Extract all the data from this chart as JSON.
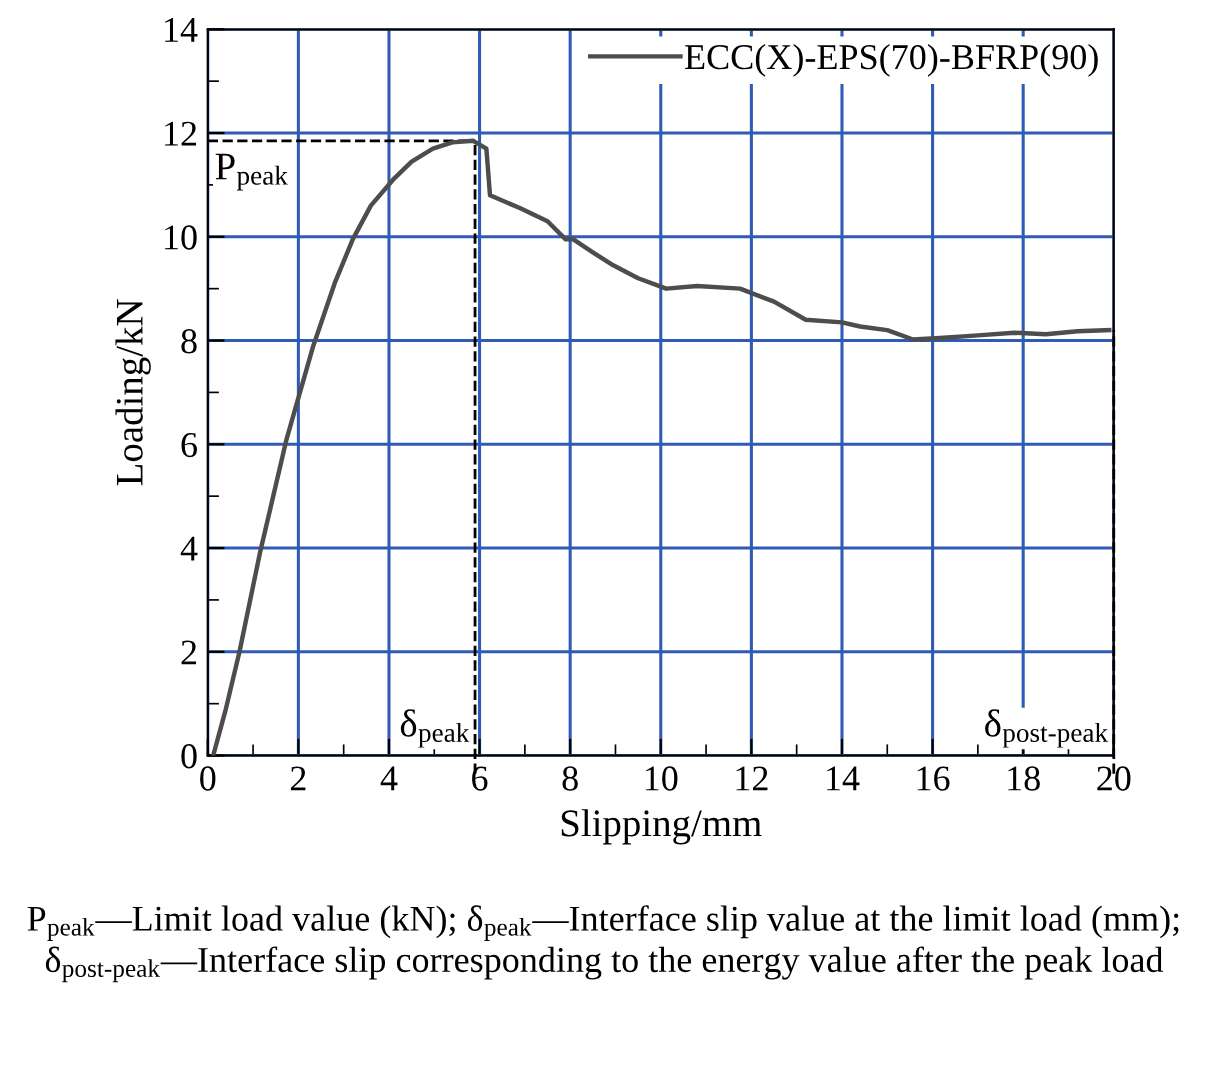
{
  "chart_data": {
    "type": "line",
    "xlabel": "Slipping/mm",
    "ylabel": "Loading/kN",
    "series": [
      {
        "name": "ECC(X)-EPS(70)-BFRP(90)",
        "color": "#4d4d4d",
        "x": [
          0.12,
          0.4,
          0.7,
          1.15,
          1.74,
          2.33,
          2.8,
          3.2,
          3.6,
          4.09,
          4.5,
          4.97,
          5.4,
          5.86,
          6.15,
          6.23,
          6.9,
          7.5,
          7.9,
          8.07,
          8.5,
          8.95,
          9.5,
          10.12,
          10.8,
          11.75,
          12.5,
          13.2,
          14.0,
          14.4,
          15.0,
          15.57,
          16.16,
          17.0,
          17.8,
          18.5,
          19.2,
          19.9
        ],
        "values": [
          0,
          0.9,
          2,
          3.9,
          6.1,
          7.9,
          9.1,
          9.95,
          10.6,
          11.1,
          11.45,
          11.7,
          11.82,
          11.85,
          11.7,
          10.8,
          10.55,
          10.3,
          9.95,
          9.95,
          9.7,
          9.45,
          9.2,
          9.0,
          9.05,
          9.0,
          8.75,
          8.4,
          8.35,
          8.27,
          8.2,
          8.02,
          8.05,
          8.1,
          8.15,
          8.12,
          8.18,
          8.2
        ]
      }
    ],
    "xlim": [
      0,
      20
    ],
    "ylim": [
      0,
      14
    ],
    "xticks": [
      0,
      2,
      4,
      6,
      8,
      10,
      12,
      14,
      16,
      18,
      20
    ],
    "yticks": [
      0,
      2,
      4,
      6,
      8,
      10,
      12,
      14
    ],
    "grid": true,
    "legend": "top right",
    "line_style": "solid",
    "marker": "none",
    "ref_lines": [
      {
        "axis": "y",
        "value": 11.85,
        "label": "P$_{peak}$",
        "color": "#000000",
        "line_style": "dashed"
      },
      {
        "axis": "x",
        "value": 5.9,
        "label": "δ$_{peak}$",
        "color": "#000000",
        "line_style": "dashed"
      },
      {
        "axis": "x",
        "value": 20,
        "label": "δ$_{post-peak}$",
        "color": "#000000",
        "line_style": "dashed"
      }
    ],
    "annotations": [
      "P$_{peak}$—Limit load value (kN); δ$_{peak}$—Interface slip value at the limit load (mm); δ$_{post-peak}$—Interface slip corresponding to the energy value after the peak load"
    ]
  }
}
